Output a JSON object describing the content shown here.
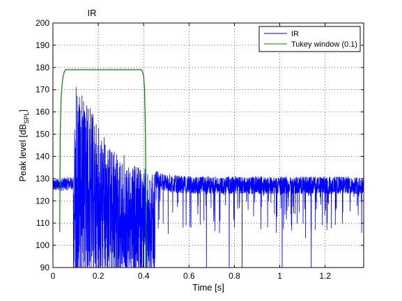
{
  "chart_data": {
    "type": "line",
    "title": "IR",
    "xlabel": "Time [s]",
    "ylabel_main": "Peak level [dB",
    "ylabel_sub": "SPL",
    "ylabel_end": "]",
    "xlim": [
      0,
      1.37
    ],
    "ylim": [
      90,
      200
    ],
    "xticks": [
      0,
      0.2,
      0.4,
      0.6,
      0.8,
      1,
      1.2
    ],
    "xtick_labels": [
      "0",
      "0.2",
      "0.4",
      "0.6",
      "0.8",
      "1",
      "1.2"
    ],
    "yticks": [
      90,
      100,
      110,
      120,
      130,
      140,
      150,
      160,
      170,
      180,
      190,
      200
    ],
    "ytick_labels": [
      "90",
      "100",
      "110",
      "120",
      "130",
      "140",
      "150",
      "160",
      "170",
      "180",
      "190",
      "200"
    ],
    "grid": true,
    "legend": "top-right",
    "series": [
      {
        "name": "IR",
        "color": "#0000ff",
        "kind": "noisy-impulse-response",
        "noise_floor_db": 127,
        "peak_time_s": 0.09,
        "peak_db": 178,
        "x": [
          0,
          0.09,
          0.1,
          0.15,
          0.2,
          0.25,
          0.3,
          0.35,
          0.4,
          0.45,
          0.5,
          0.6,
          0.8,
          1.0,
          1.2,
          1.37
        ],
        "y": [
          127,
          128,
          175,
          165,
          152,
          145,
          140,
          136,
          134,
          130,
          128,
          127,
          127,
          127,
          127,
          127
        ]
      },
      {
        "name": "Tukey window (0.1)",
        "color": "#007f00",
        "x": [
          0.03,
          0.032,
          0.036,
          0.04,
          0.045,
          0.05,
          0.055,
          0.06,
          0.39,
          0.395,
          0.4,
          0.404,
          0.408,
          0.412
        ],
        "y": [
          106,
          150,
          166,
          172,
          176,
          178,
          179,
          179,
          179,
          178,
          176,
          170,
          150,
          90
        ]
      }
    ]
  }
}
